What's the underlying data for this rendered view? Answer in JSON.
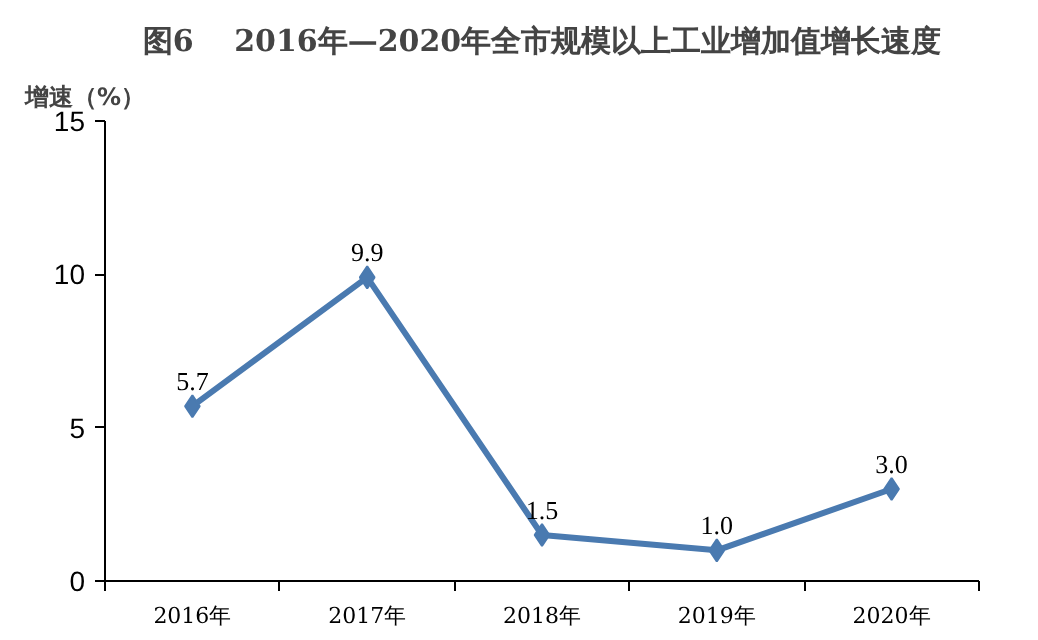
{
  "chart_data": {
    "type": "line",
    "title": "图6　 2016年—2020年全市规模以上工业增加值增长速度",
    "ylabel": "增速（%）",
    "categories": [
      "2016年",
      "2017年",
      "2018年",
      "2019年",
      "2020年"
    ],
    "series": [
      {
        "color": "#4a7ab0",
        "values": [
          5.7,
          9.9,
          1.5,
          1.0,
          3.0
        ],
        "value_labels": [
          "5.7",
          "9.9",
          "1.5",
          "1.0",
          "3.0"
        ]
      }
    ],
    "ylim": [
      0,
      15
    ],
    "yticks": [
      0,
      5,
      10,
      15
    ],
    "marker": "diamond",
    "grid": false
  }
}
